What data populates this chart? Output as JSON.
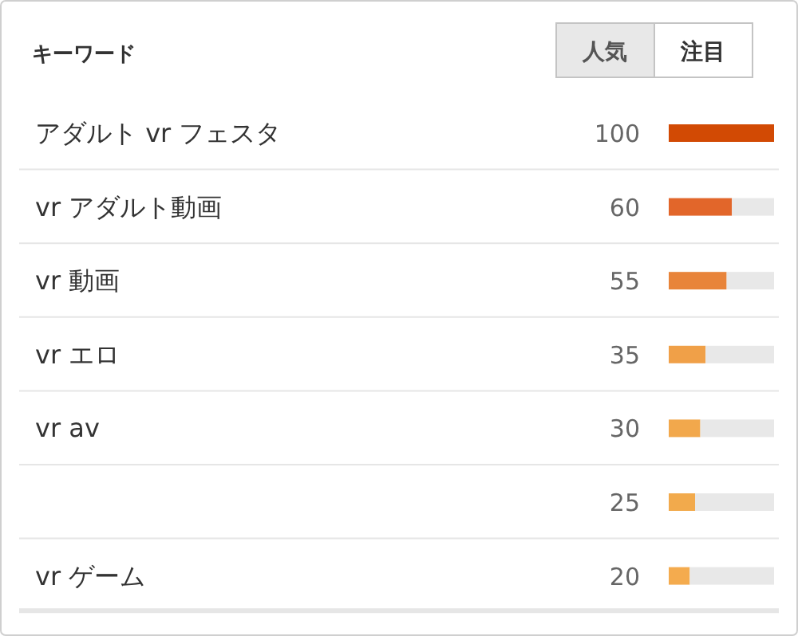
{
  "chart_data": {
    "type": "bar",
    "orientation": "horizontal",
    "stacked": true,
    "title": "キーワード",
    "annotations": [
      "人気",
      "注目"
    ],
    "categories": [
      "アダルト vr フェスタ",
      "vr アダルト動画",
      "vr 動画",
      "vr エロ",
      "vr av",
      null,
      "vr ゲーム"
    ],
    "series": [
      {
        "colors": [
          "#d24a04",
          "#e2662a",
          "#e8843a",
          "#f0a048",
          "#f2a84c",
          "#f2aa4c",
          "#f4ab4e"
        ],
        "values": [
          100,
          60,
          55,
          35,
          30,
          25,
          20
        ],
        "value_labels": [
          "100",
          "60",
          "55",
          "35",
          "30",
          "25",
          "20"
        ]
      },
      {
        "color": "#e8e8e8",
        "values": [
          0,
          40,
          45,
          65,
          70,
          75,
          80
        ]
      }
    ],
    "xlim": [
      0,
      100
    ],
    "tick_labels": false
  }
}
